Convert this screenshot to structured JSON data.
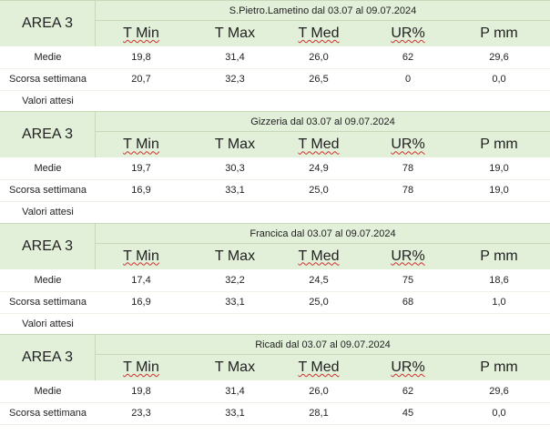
{
  "areas": [
    {
      "area": "AREA 3",
      "title": "S.Pietro.Lametino dal 03.07 al 09.07.2024",
      "columns": [
        "T Min",
        "T Max",
        "T Med",
        "UR%",
        "P mm"
      ],
      "rows": [
        {
          "label": "Medie",
          "values": [
            "19,8",
            "31,4",
            "26,0",
            "62",
            "29,6"
          ]
        },
        {
          "label": "Scorsa settimana",
          "values": [
            "20,7",
            "32,3",
            "26,5",
            "0",
            "0,0"
          ]
        },
        {
          "label": "Valori attesi"
        }
      ]
    },
    {
      "area": "AREA 3",
      "title": "Gizzeria dal 03.07 al 09.07.2024",
      "columns": [
        "T Min",
        "T Max",
        "T Med",
        "UR%",
        "P mm"
      ],
      "rows": [
        {
          "label": "Medie",
          "values": [
            "19,7",
            "30,3",
            "24,9",
            "78",
            "19,0"
          ]
        },
        {
          "label": "Scorsa settimana",
          "values": [
            "16,9",
            "33,1",
            "25,0",
            "78",
            "19,0"
          ]
        },
        {
          "label": "Valori attesi"
        }
      ]
    },
    {
      "area": "AREA 3",
      "title": "Francica dal 03.07 al 09.07.2024",
      "columns": [
        "T Min",
        "T Max",
        "T Med",
        "UR%",
        "P mm"
      ],
      "rows": [
        {
          "label": "Medie",
          "values": [
            "17,4",
            "32,2",
            "24,5",
            "75",
            "18,6"
          ]
        },
        {
          "label": "Scorsa settimana",
          "values": [
            "16,9",
            "33,1",
            "25,0",
            "68",
            "1,0"
          ]
        },
        {
          "label": "Valori attesi"
        }
      ]
    },
    {
      "area": "AREA 3",
      "title": "Ricadi  dal 03.07 al 09.07.2024",
      "columns": [
        "T Min",
        "T Max",
        "T Med",
        "UR%",
        "P mm"
      ],
      "rows": [
        {
          "label": "Medie",
          "values": [
            "19,8",
            "31,4",
            "26,0",
            "62",
            "29,6"
          ]
        },
        {
          "label": "Scorsa settimana",
          "values": [
            "23,3",
            "33,1",
            "28,1",
            "45",
            "0,0"
          ]
        }
      ]
    }
  ]
}
